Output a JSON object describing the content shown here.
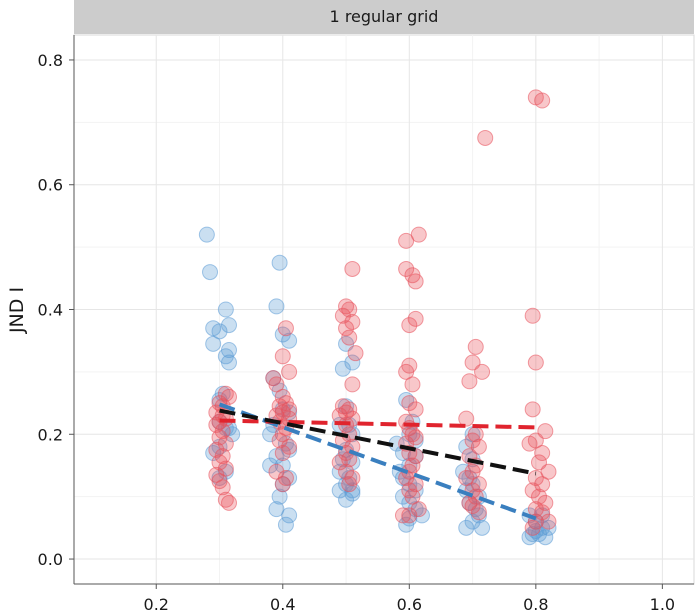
{
  "chart_data": {
    "type": "scatter",
    "panel_title": "1 regular grid",
    "xlabel": "",
    "ylabel": "JND I",
    "xlim": [
      0.07,
      1.05
    ],
    "ylim": [
      -0.04,
      0.84
    ],
    "x_ticks": [
      "0.2",
      "0.4",
      "0.6",
      "0.8",
      "1.0"
    ],
    "y_ticks": [
      "0.0",
      "0.2",
      "0.4",
      "0.6",
      "0.8"
    ],
    "grid": true,
    "legend": "none",
    "series": [
      {
        "color": "#5b9bd5",
        "points": [
          [
            0.28,
            0.52
          ],
          [
            0.285,
            0.46
          ],
          [
            0.31,
            0.4
          ],
          [
            0.315,
            0.375
          ],
          [
            0.29,
            0.37
          ],
          [
            0.3,
            0.365
          ],
          [
            0.29,
            0.345
          ],
          [
            0.315,
            0.335
          ],
          [
            0.31,
            0.325
          ],
          [
            0.315,
            0.315
          ],
          [
            0.305,
            0.265
          ],
          [
            0.3,
            0.255
          ],
          [
            0.3,
            0.22
          ],
          [
            0.31,
            0.21
          ],
          [
            0.3,
            0.18
          ],
          [
            0.29,
            0.17
          ],
          [
            0.31,
            0.14
          ],
          [
            0.3,
            0.13
          ],
          [
            0.315,
            0.21
          ],
          [
            0.32,
            0.2
          ],
          [
            0.395,
            0.475
          ],
          [
            0.39,
            0.405
          ],
          [
            0.4,
            0.36
          ],
          [
            0.41,
            0.35
          ],
          [
            0.385,
            0.29
          ],
          [
            0.395,
            0.27
          ],
          [
            0.4,
            0.24
          ],
          [
            0.41,
            0.235
          ],
          [
            0.385,
            0.215
          ],
          [
            0.38,
            0.2
          ],
          [
            0.405,
            0.185
          ],
          [
            0.41,
            0.175
          ],
          [
            0.39,
            0.165
          ],
          [
            0.4,
            0.15
          ],
          [
            0.38,
            0.15
          ],
          [
            0.41,
            0.13
          ],
          [
            0.4,
            0.12
          ],
          [
            0.395,
            0.1
          ],
          [
            0.39,
            0.08
          ],
          [
            0.41,
            0.07
          ],
          [
            0.405,
            0.055
          ],
          [
            0.5,
            0.345
          ],
          [
            0.51,
            0.315
          ],
          [
            0.495,
            0.305
          ],
          [
            0.5,
            0.245
          ],
          [
            0.505,
            0.215
          ],
          [
            0.49,
            0.215
          ],
          [
            0.51,
            0.2
          ],
          [
            0.5,
            0.175
          ],
          [
            0.495,
            0.16
          ],
          [
            0.51,
            0.155
          ],
          [
            0.49,
            0.14
          ],
          [
            0.505,
            0.13
          ],
          [
            0.5,
            0.12
          ],
          [
            0.49,
            0.11
          ],
          [
            0.51,
            0.105
          ],
          [
            0.5,
            0.095
          ],
          [
            0.51,
            0.11
          ],
          [
            0.595,
            0.255
          ],
          [
            0.605,
            0.22
          ],
          [
            0.6,
            0.2
          ],
          [
            0.58,
            0.185
          ],
          [
            0.59,
            0.17
          ],
          [
            0.61,
            0.165
          ],
          [
            0.6,
            0.15
          ],
          [
            0.585,
            0.14
          ],
          [
            0.59,
            0.13
          ],
          [
            0.6,
            0.12
          ],
          [
            0.61,
            0.11
          ],
          [
            0.59,
            0.1
          ],
          [
            0.6,
            0.09
          ],
          [
            0.61,
            0.08
          ],
          [
            0.6,
            0.065
          ],
          [
            0.595,
            0.055
          ],
          [
            0.62,
            0.07
          ],
          [
            0.61,
            0.19
          ],
          [
            0.7,
            0.2
          ],
          [
            0.69,
            0.18
          ],
          [
            0.7,
            0.16
          ],
          [
            0.685,
            0.14
          ],
          [
            0.695,
            0.13
          ],
          [
            0.7,
            0.12
          ],
          [
            0.69,
            0.11
          ],
          [
            0.71,
            0.1
          ],
          [
            0.695,
            0.09
          ],
          [
            0.705,
            0.08
          ],
          [
            0.71,
            0.07
          ],
          [
            0.7,
            0.06
          ],
          [
            0.69,
            0.05
          ],
          [
            0.715,
            0.05
          ],
          [
            0.79,
            0.07
          ],
          [
            0.8,
            0.06
          ],
          [
            0.81,
            0.05
          ],
          [
            0.795,
            0.04
          ],
          [
            0.805,
            0.04
          ],
          [
            0.79,
            0.035
          ],
          [
            0.815,
            0.035
          ],
          [
            0.8,
            0.045
          ],
          [
            0.82,
            0.05
          ],
          [
            0.81,
            0.07
          ]
        ],
        "trend": [
          [
            0.3,
            0.248
          ],
          [
            0.8,
            0.065
          ]
        ]
      },
      {
        "color": "#e8505b",
        "points": [
          [
            0.31,
            0.265
          ],
          [
            0.315,
            0.26
          ],
          [
            0.3,
            0.25
          ],
          [
            0.305,
            0.245
          ],
          [
            0.295,
            0.235
          ],
          [
            0.305,
            0.23
          ],
          [
            0.31,
            0.225
          ],
          [
            0.3,
            0.22
          ],
          [
            0.295,
            0.215
          ],
          [
            0.305,
            0.205
          ],
          [
            0.3,
            0.195
          ],
          [
            0.31,
            0.185
          ],
          [
            0.295,
            0.175
          ],
          [
            0.305,
            0.165
          ],
          [
            0.3,
            0.155
          ],
          [
            0.31,
            0.145
          ],
          [
            0.295,
            0.135
          ],
          [
            0.3,
            0.125
          ],
          [
            0.305,
            0.115
          ],
          [
            0.31,
            0.095
          ],
          [
            0.315,
            0.09
          ],
          [
            0.405,
            0.37
          ],
          [
            0.4,
            0.325
          ],
          [
            0.41,
            0.3
          ],
          [
            0.385,
            0.29
          ],
          [
            0.39,
            0.28
          ],
          [
            0.4,
            0.26
          ],
          [
            0.405,
            0.25
          ],
          [
            0.395,
            0.245
          ],
          [
            0.41,
            0.24
          ],
          [
            0.4,
            0.235
          ],
          [
            0.39,
            0.23
          ],
          [
            0.41,
            0.225
          ],
          [
            0.395,
            0.22
          ],
          [
            0.405,
            0.21
          ],
          [
            0.4,
            0.2
          ],
          [
            0.395,
            0.19
          ],
          [
            0.41,
            0.18
          ],
          [
            0.4,
            0.17
          ],
          [
            0.39,
            0.14
          ],
          [
            0.405,
            0.13
          ],
          [
            0.4,
            0.12
          ],
          [
            0.51,
            0.465
          ],
          [
            0.5,
            0.405
          ],
          [
            0.505,
            0.4
          ],
          [
            0.495,
            0.39
          ],
          [
            0.51,
            0.38
          ],
          [
            0.5,
            0.37
          ],
          [
            0.505,
            0.355
          ],
          [
            0.515,
            0.33
          ],
          [
            0.51,
            0.28
          ],
          [
            0.495,
            0.245
          ],
          [
            0.505,
            0.24
          ],
          [
            0.5,
            0.235
          ],
          [
            0.49,
            0.23
          ],
          [
            0.51,
            0.225
          ],
          [
            0.5,
            0.215
          ],
          [
            0.505,
            0.2
          ],
          [
            0.495,
            0.19
          ],
          [
            0.51,
            0.18
          ],
          [
            0.5,
            0.17
          ],
          [
            0.505,
            0.16
          ],
          [
            0.49,
            0.155
          ],
          [
            0.5,
            0.14
          ],
          [
            0.51,
            0.13
          ],
          [
            0.505,
            0.12
          ],
          [
            0.595,
            0.51
          ],
          [
            0.615,
            0.52
          ],
          [
            0.595,
            0.465
          ],
          [
            0.605,
            0.455
          ],
          [
            0.61,
            0.445
          ],
          [
            0.6,
            0.375
          ],
          [
            0.61,
            0.385
          ],
          [
            0.6,
            0.31
          ],
          [
            0.595,
            0.3
          ],
          [
            0.605,
            0.28
          ],
          [
            0.6,
            0.25
          ],
          [
            0.61,
            0.24
          ],
          [
            0.595,
            0.22
          ],
          [
            0.6,
            0.21
          ],
          [
            0.605,
            0.2
          ],
          [
            0.61,
            0.195
          ],
          [
            0.595,
            0.185
          ],
          [
            0.6,
            0.17
          ],
          [
            0.61,
            0.165
          ],
          [
            0.605,
            0.15
          ],
          [
            0.6,
            0.14
          ],
          [
            0.595,
            0.13
          ],
          [
            0.61,
            0.12
          ],
          [
            0.6,
            0.11
          ],
          [
            0.605,
            0.1
          ],
          [
            0.615,
            0.08
          ],
          [
            0.6,
            0.07
          ],
          [
            0.59,
            0.07
          ],
          [
            0.72,
            0.675
          ],
          [
            0.705,
            0.34
          ],
          [
            0.7,
            0.315
          ],
          [
            0.715,
            0.3
          ],
          [
            0.695,
            0.285
          ],
          [
            0.69,
            0.225
          ],
          [
            0.705,
            0.2
          ],
          [
            0.7,
            0.19
          ],
          [
            0.71,
            0.18
          ],
          [
            0.695,
            0.165
          ],
          [
            0.705,
            0.15
          ],
          [
            0.7,
            0.14
          ],
          [
            0.69,
            0.13
          ],
          [
            0.71,
            0.12
          ],
          [
            0.7,
            0.11
          ],
          [
            0.705,
            0.1
          ],
          [
            0.695,
            0.09
          ],
          [
            0.7,
            0.085
          ],
          [
            0.71,
            0.075
          ],
          [
            0.8,
            0.74
          ],
          [
            0.81,
            0.735
          ],
          [
            0.795,
            0.39
          ],
          [
            0.8,
            0.315
          ],
          [
            0.795,
            0.24
          ],
          [
            0.815,
            0.205
          ],
          [
            0.8,
            0.19
          ],
          [
            0.79,
            0.185
          ],
          [
            0.81,
            0.17
          ],
          [
            0.805,
            0.155
          ],
          [
            0.82,
            0.14
          ],
          [
            0.8,
            0.13
          ],
          [
            0.81,
            0.12
          ],
          [
            0.795,
            0.11
          ],
          [
            0.805,
            0.1
          ],
          [
            0.815,
            0.09
          ],
          [
            0.8,
            0.08
          ],
          [
            0.81,
            0.075
          ],
          [
            0.8,
            0.06
          ],
          [
            0.82,
            0.06
          ],
          [
            0.795,
            0.05
          ]
        ],
        "trend": [
          [
            0.3,
            0.222
          ],
          [
            0.8,
            0.211
          ]
        ]
      },
      {
        "color": "#111111",
        "points": [],
        "trend": [
          [
            0.3,
            0.238
          ],
          [
            0.8,
            0.137
          ]
        ]
      }
    ]
  }
}
